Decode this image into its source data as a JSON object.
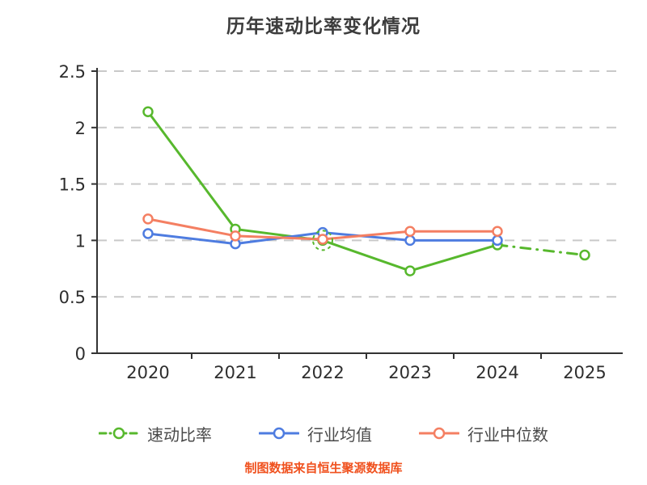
{
  "chart_data": {
    "type": "line",
    "title": "历年速动比率变化情况",
    "categories": [
      "2020",
      "2021",
      "2022",
      "2023",
      "2024",
      "2025"
    ],
    "series": [
      {
        "name": "速动比率",
        "color": "#57b82d",
        "values": [
          2.14,
          1.1,
          1.0,
          0.73,
          0.96,
          0.87
        ],
        "dashed_from_index": 4
      },
      {
        "name": "行业均值",
        "color": "#4e7ce0",
        "values": [
          1.06,
          0.97,
          1.07,
          1.0,
          1.0,
          null
        ],
        "dashed_from_index": null
      },
      {
        "name": "行业中位数",
        "color": "#f47f62",
        "values": [
          1.19,
          1.04,
          1.01,
          1.08,
          1.08,
          null
        ],
        "dashed_from_index": null
      }
    ],
    "ylim": [
      0,
      2.5
    ],
    "yticks": [
      0,
      0.5,
      1,
      1.5,
      2,
      2.5
    ],
    "ytick_labels": [
      "0",
      "0.5",
      "1",
      "1.5",
      "2",
      "2.5"
    ],
    "grid": "dashed-horizontal",
    "legend_position": "bottom",
    "annotations": [
      {
        "type": "dashed-ring",
        "category_index": 2,
        "y": 1.0,
        "color": "#57b82d"
      }
    ]
  },
  "caption": {
    "text": "制图数据来自恒生聚源数据库",
    "color": "#f0511e"
  },
  "colors": {
    "axis": "#333333",
    "grid": "#c9c9c9",
    "title": "#3c3c3c",
    "tick_label": "#2e2e2e"
  }
}
